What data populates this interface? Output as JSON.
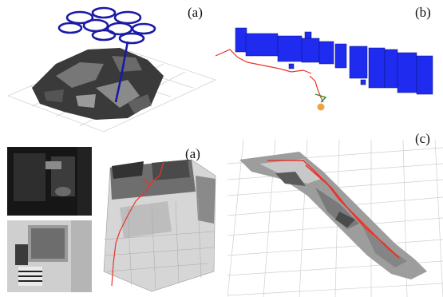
{
  "figure": {
    "labels": {
      "a": "(a)",
      "b": "(b)",
      "c_top": "(c)",
      "c_left": "(a)"
    },
    "colors": {
      "trajectory_blue": "#1a1aa6",
      "voxel_blue": "#1f2cf0",
      "trajectory_red": "#e8342a",
      "grid": "#c9c9c9",
      "marker_orange": "#f0a340"
    },
    "panels": [
      {
        "id": "a",
        "content": "point-cloud-with-flight-trajectory"
      },
      {
        "id": "b",
        "content": "blue-voxel-map-with-red-path"
      },
      {
        "id": "c",
        "content": "gray-terrain-map-with-red-path"
      },
      {
        "id": "bottom-left",
        "content": "camera-images-and-voxel-room"
      }
    ]
  }
}
